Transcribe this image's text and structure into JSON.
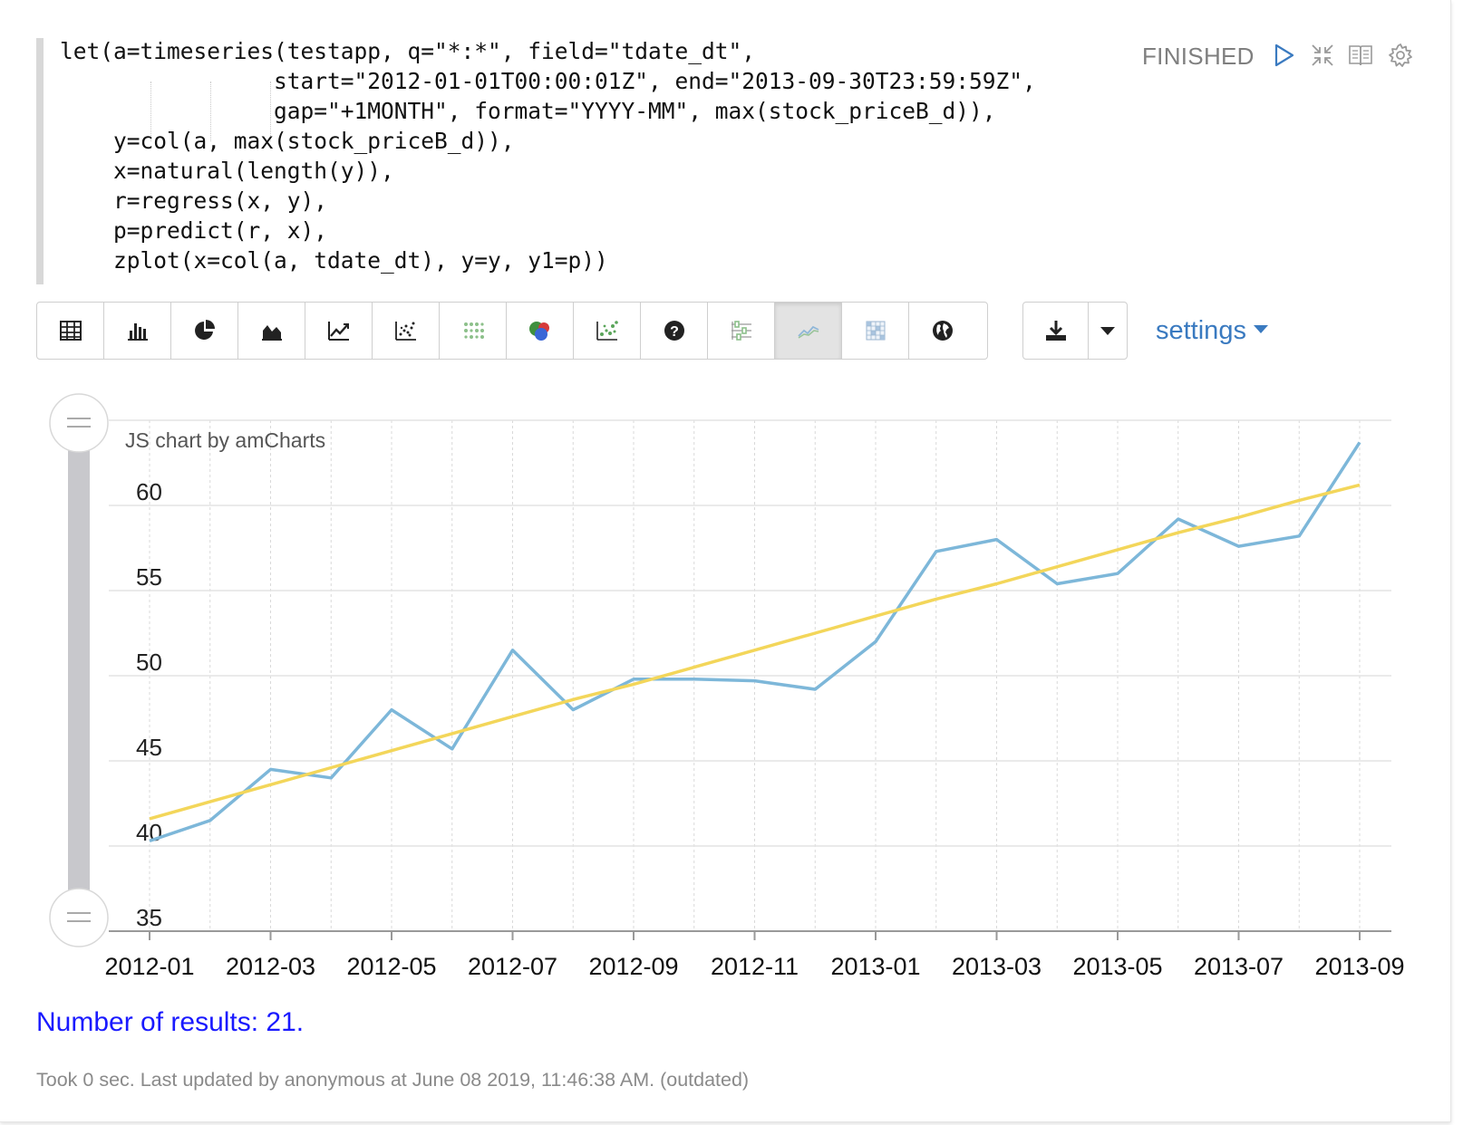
{
  "paragraph": {
    "code_lines": [
      "let(a=timeseries(testapp, q=\"*:*\", field=\"tdate_dt\",",
      "                start=\"2012-01-01T00:00:01Z\", end=\"2013-09-30T23:59:59Z\",",
      "                gap=\"+1MONTH\", format=\"YYYY-MM\", max(stock_priceB_d)),",
      "    y=col(a, max(stock_priceB_d)),",
      "    x=natural(length(y)),",
      "    r=regress(x, y),",
      "    p=predict(r, x),",
      "    zplot(x=col(a, tdate_dt), y=y, y1=p))"
    ],
    "status": "FINISHED",
    "controls": [
      "run-icon",
      "collapse-icon",
      "book-icon",
      "gear-icon"
    ]
  },
  "toolbar": {
    "buttons": [
      {
        "icon": "table-icon",
        "active": false
      },
      {
        "icon": "bar-chart-icon",
        "active": false
      },
      {
        "icon": "pie-chart-icon",
        "active": false
      },
      {
        "icon": "area-chart-icon",
        "active": false
      },
      {
        "icon": "line-chart-icon",
        "active": false
      },
      {
        "icon": "scatter-chart-icon",
        "active": false
      },
      {
        "icon": "grid-points-icon",
        "active": false
      },
      {
        "icon": "venn-icon",
        "active": false
      },
      {
        "icon": "bubble-scatter-icon",
        "active": false
      },
      {
        "icon": "help-icon",
        "active": false
      },
      {
        "icon": "sliders-icon",
        "active": false
      },
      {
        "icon": "multi-line-icon",
        "active": true
      },
      {
        "icon": "heatmap-icon",
        "active": false
      },
      {
        "icon": "globe-icon",
        "active": false
      }
    ],
    "download_icon": "download-icon",
    "dropdown_icon": "caret-down-icon",
    "settings_label": "settings"
  },
  "chart_data": {
    "type": "line",
    "credit": "JS chart by amCharts",
    "x": [
      "2012-01",
      "2012-02",
      "2012-03",
      "2012-04",
      "2012-05",
      "2012-06",
      "2012-07",
      "2012-08",
      "2012-09",
      "2012-10",
      "2012-11",
      "2012-12",
      "2013-01",
      "2013-02",
      "2013-03",
      "2013-04",
      "2013-05",
      "2013-06",
      "2013-07",
      "2013-08",
      "2013-09"
    ],
    "x_tick_labels": [
      "2012-01",
      "2012-03",
      "2012-05",
      "2012-07",
      "2012-09",
      "2012-11",
      "2013-01",
      "2013-03",
      "2013-05",
      "2013-07",
      "2013-09"
    ],
    "series": [
      {
        "color": "#7db7d9",
        "values": [
          40.3,
          41.5,
          44.5,
          44.0,
          48.0,
          45.7,
          51.5,
          48.0,
          49.8,
          49.8,
          49.7,
          49.2,
          52.0,
          57.3,
          58.0,
          55.4,
          56.0,
          59.2,
          57.6,
          58.2,
          63.7
        ]
      },
      {
        "color": "#f3d65a",
        "values": [
          41.6,
          42.6,
          43.6,
          44.6,
          45.6,
          46.6,
          47.6,
          48.6,
          49.5,
          50.5,
          51.5,
          52.5,
          53.5,
          54.5,
          55.4,
          56.4,
          57.4,
          58.4,
          59.3,
          60.3,
          61.2
        ]
      }
    ],
    "y_ticks": [
      35,
      40,
      45,
      50,
      55,
      60
    ],
    "ylim": [
      35,
      65
    ],
    "grid": true,
    "legend": "none"
  },
  "results_text": "Number of results: 21.",
  "footer_text": "Took 0 sec. Last updated by anonymous at June 08 2019, 11:46:38 AM. (outdated)"
}
